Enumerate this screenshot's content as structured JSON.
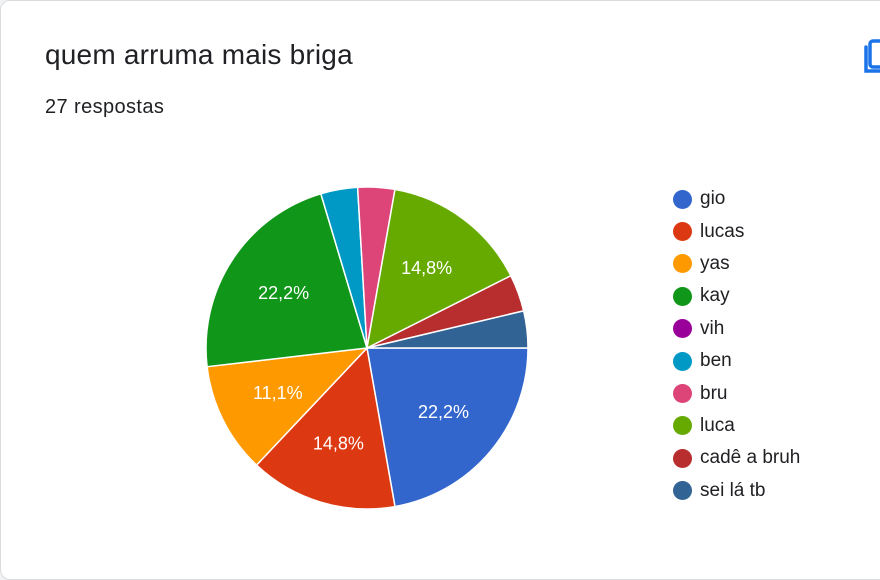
{
  "question": {
    "title": "quem arruma mais briga",
    "responses": "27 respostas",
    "copy_button_icon": "copy-icon"
  },
  "chart_data": {
    "type": "pie",
    "title": "quem arruma mais briga",
    "total_responses": 27,
    "start": "3 o'clock, clockwise",
    "slices": [
      {
        "name": "gio",
        "count": 6,
        "percent_label": "22,2%",
        "color": "#3366cc"
      },
      {
        "name": "lucas",
        "count": 4,
        "percent_label": "14,8%",
        "color": "#dc3912"
      },
      {
        "name": "yas",
        "count": 3,
        "percent_label": "11,1%",
        "color": "#ff9900"
      },
      {
        "name": "kay",
        "count": 6,
        "percent_label": "22,2%",
        "color": "#109618"
      },
      {
        "name": "vih",
        "count": 0,
        "percent_label": "",
        "color": "#990099"
      },
      {
        "name": "ben",
        "count": 1,
        "percent_label": "",
        "color": "#0099c6"
      },
      {
        "name": "bru",
        "count": 1,
        "percent_label": "",
        "color": "#dd4477"
      },
      {
        "name": "luca",
        "count": 4,
        "percent_label": "14,8%",
        "color": "#66aa00"
      },
      {
        "name": "cadê a bruh",
        "count": 1,
        "percent_label": "",
        "color": "#b82e2e"
      },
      {
        "name": "sei lá tb",
        "count": 1,
        "percent_label": "",
        "color": "#316395"
      }
    ],
    "legend_position": "right"
  }
}
